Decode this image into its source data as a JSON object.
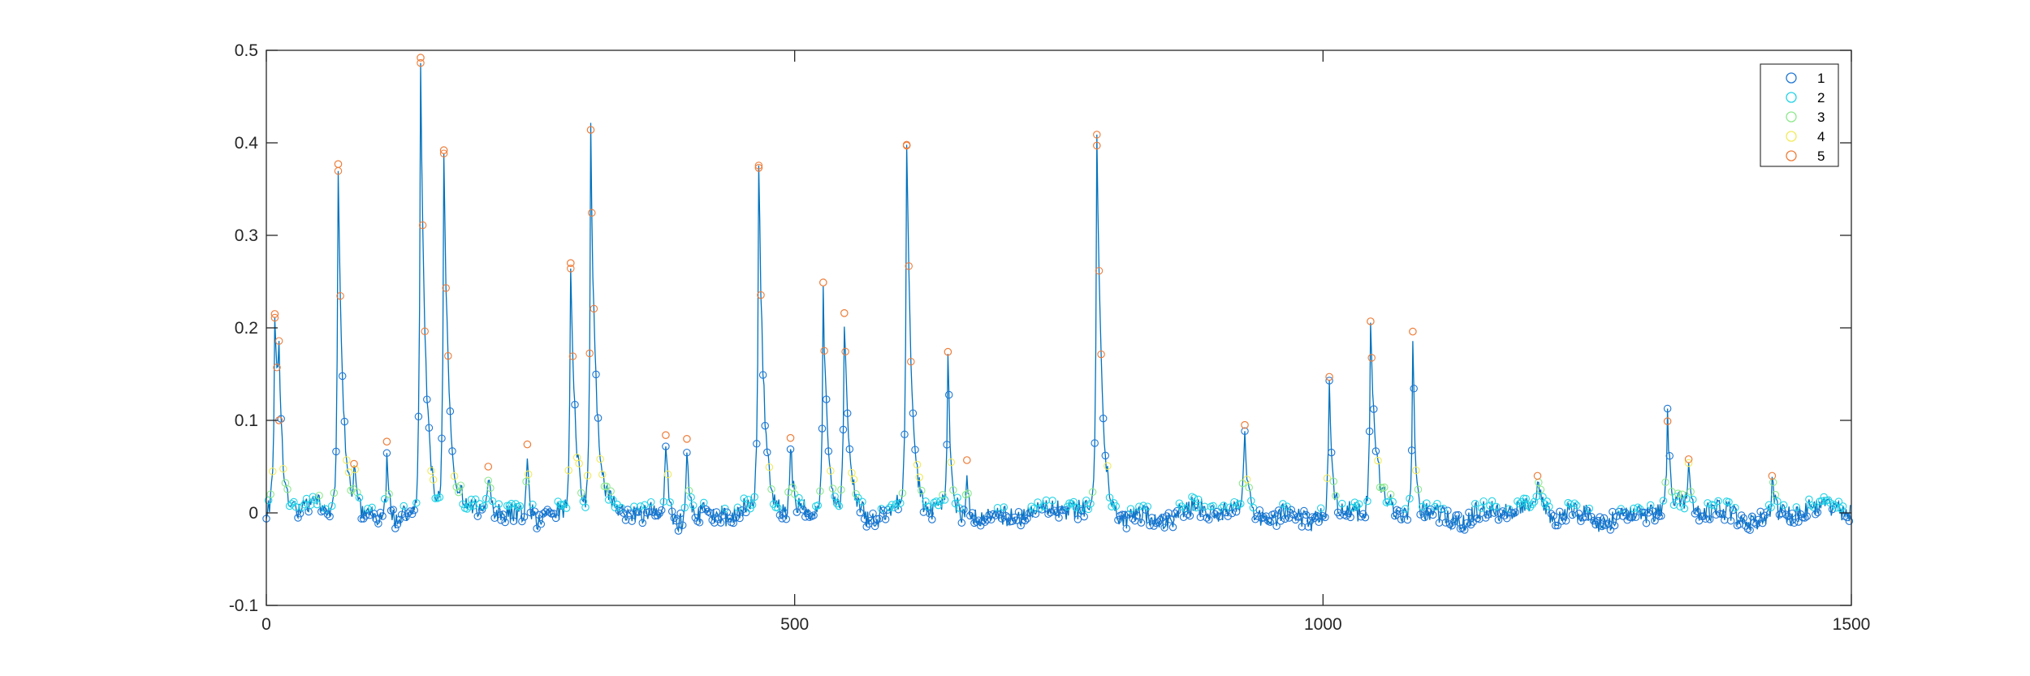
{
  "chart_data": {
    "type": "line",
    "title": "",
    "xlabel": "",
    "ylabel": "",
    "xlim": [
      0,
      1500
    ],
    "ylim": [
      -0.1,
      0.5
    ],
    "x_ticks": [
      0,
      500,
      1000,
      1500
    ],
    "x_tick_labels": [
      "0",
      "500",
      "1000",
      "1500"
    ],
    "y_ticks": [
      -0.1,
      0,
      0.1,
      0.2,
      0.3,
      0.4,
      0.5
    ],
    "y_tick_labels": [
      "-0.1",
      "0",
      "0.1",
      "0.2",
      "0.3",
      "0.4",
      "0.5"
    ],
    "grid": false,
    "legend_placement": "top-right",
    "line_color": "#0072BD",
    "legend": [
      {
        "label": "1",
        "color": "#1f77d4"
      },
      {
        "label": "2",
        "color": "#22d3e6"
      },
      {
        "label": "3",
        "color": "#8ee88e"
      },
      {
        "label": "4",
        "color": "#f2ea5a"
      },
      {
        "label": "5",
        "color": "#ee7d3a"
      }
    ],
    "baseline": 0,
    "peaks": [
      {
        "x": 8,
        "y": 0.215
      },
      {
        "x": 12,
        "y": 0.1
      },
      {
        "x": 68,
        "y": 0.377
      },
      {
        "x": 83,
        "y": 0.053
      },
      {
        "x": 114,
        "y": 0.077
      },
      {
        "x": 146,
        "y": 0.492
      },
      {
        "x": 168,
        "y": 0.392
      },
      {
        "x": 210,
        "y": 0.05
      },
      {
        "x": 247,
        "y": 0.074
      },
      {
        "x": 288,
        "y": 0.27
      },
      {
        "x": 307,
        "y": 0.414
      },
      {
        "x": 378,
        "y": 0.084
      },
      {
        "x": 398,
        "y": 0.08
      },
      {
        "x": 466,
        "y": 0.373
      },
      {
        "x": 496,
        "y": 0.081
      },
      {
        "x": 527,
        "y": 0.249
      },
      {
        "x": 547,
        "y": 0.216
      },
      {
        "x": 606,
        "y": 0.397
      },
      {
        "x": 645,
        "y": 0.174
      },
      {
        "x": 663,
        "y": 0.057
      },
      {
        "x": 786,
        "y": 0.397
      },
      {
        "x": 926,
        "y": 0.095
      },
      {
        "x": 1006,
        "y": 0.147
      },
      {
        "x": 1045,
        "y": 0.207
      },
      {
        "x": 1085,
        "y": 0.196
      },
      {
        "x": 1203,
        "y": 0.04
      },
      {
        "x": 1326,
        "y": 0.099
      },
      {
        "x": 1346,
        "y": 0.058
      },
      {
        "x": 1425,
        "y": 0.04
      }
    ]
  }
}
